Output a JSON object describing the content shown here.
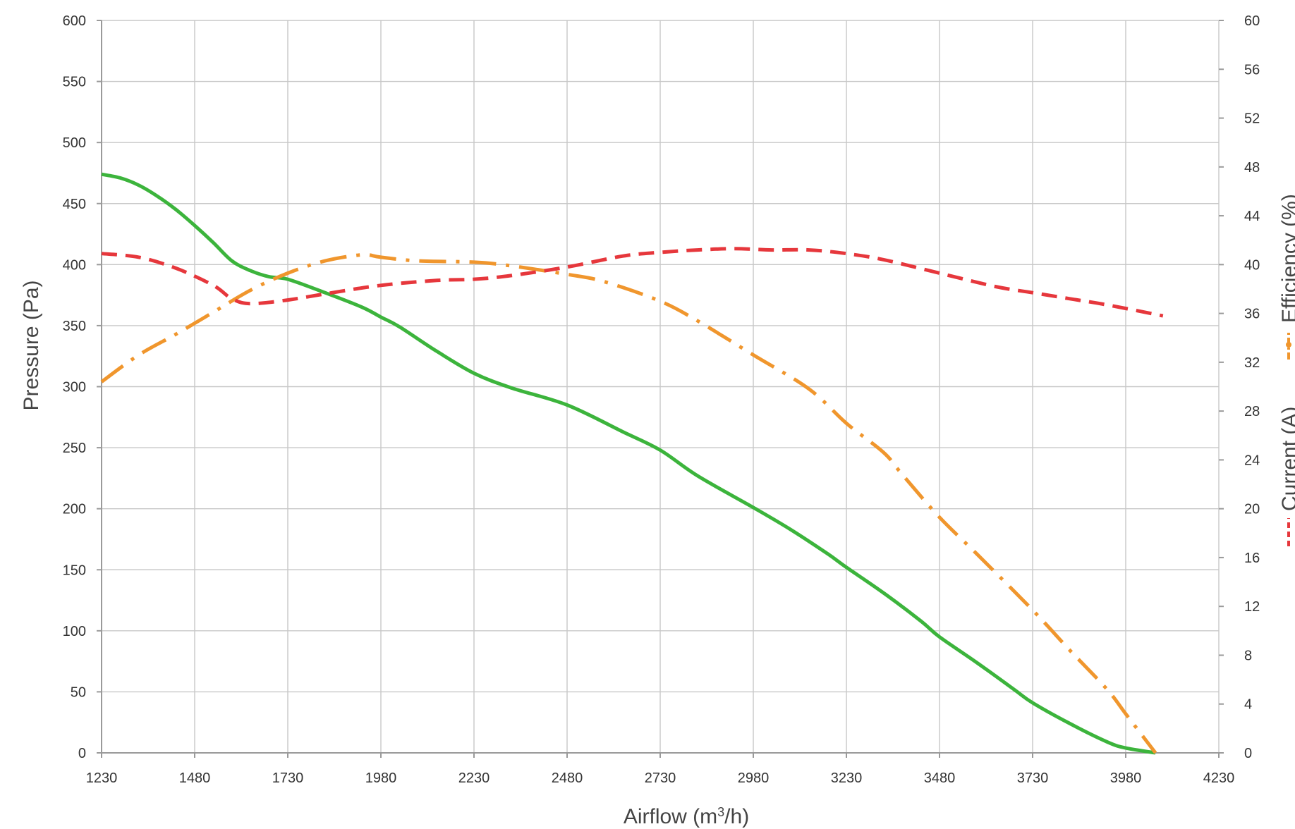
{
  "chart_data": {
    "type": "line",
    "title": "",
    "xlabel_main": "Airflow (m",
    "xlabel_sup": "3",
    "xlabel_tail": "/h)",
    "ylabel": "Pressure (Pa)",
    "y2label_efficiency": "Efficiency (%)",
    "y2label_current": "Current (A)",
    "grid": true,
    "xlim": [
      1230,
      4230
    ],
    "ylim": [
      0,
      600
    ],
    "y2lim": [
      0,
      60
    ],
    "x_ticks": [
      "1230",
      "1480",
      "1730",
      "1980",
      "2230",
      "2480",
      "2730",
      "2980",
      "3230",
      "3480",
      "3730",
      "3980",
      "4230"
    ],
    "y_ticks": [
      "0",
      "50",
      "100",
      "150",
      "200",
      "250",
      "300",
      "350",
      "400",
      "450",
      "500",
      "550",
      "600"
    ],
    "y2_ticks": [
      "0",
      "4",
      "8",
      "12",
      "16",
      "20",
      "24",
      "28",
      "32",
      "36",
      "40",
      "44",
      "48",
      "52",
      "56",
      "60"
    ],
    "series": [
      {
        "key": "pressure",
        "axis": "left",
        "color": "#3cb43c",
        "style": "solid",
        "x": [
          1230,
          1280,
          1330,
          1380,
          1430,
          1480,
          1530,
          1580,
          1630,
          1680,
          1730,
          1830,
          1930,
          1980,
          2030,
          2130,
          2230,
          2330,
          2480,
          2630,
          2730,
          2830,
          2980,
          3080,
          3180,
          3230,
          3330,
          3430,
          3480,
          3580,
          3680,
          3730,
          3830,
          3930,
          3980,
          4060
        ],
        "y": [
          474,
          471,
          465,
          456,
          445,
          432,
          418,
          403,
          395,
          390,
          388,
          377,
          365,
          357,
          349,
          329,
          311,
          299,
          285,
          263,
          248,
          227,
          201,
          183,
          163,
          152,
          131,
          108,
          95,
          74,
          52,
          41,
          24,
          9,
          4,
          0
        ]
      },
      {
        "key": "efficiency",
        "axis": "right",
        "color": "#f0962d",
        "style": "dashdot",
        "x": [
          1230,
          1330,
          1430,
          1530,
          1630,
          1730,
          1830,
          1930,
          1980,
          2080,
          2230,
          2330,
          2480,
          2580,
          2730,
          2830,
          2980,
          3130,
          3230,
          3330,
          3380,
          3480,
          3580,
          3730,
          3830,
          3930,
          3980,
          4060
        ],
        "y": [
          30.4,
          32.6,
          34.3,
          36.1,
          37.9,
          39.3,
          40.3,
          40.8,
          40.6,
          40.3,
          40.2,
          39.9,
          39.2,
          38.6,
          37.0,
          35.4,
          32.6,
          29.8,
          27.0,
          24.6,
          22.8,
          19.3,
          16.3,
          11.7,
          8.4,
          5.2,
          3.2,
          0
        ]
      },
      {
        "key": "current",
        "axis": "right",
        "color": "#e6373c",
        "style": "dashed",
        "x": [
          1230,
          1330,
          1430,
          1530,
          1580,
          1630,
          1730,
          1830,
          1980,
          2130,
          2230,
          2330,
          2480,
          2630,
          2730,
          2830,
          2930,
          3030,
          3130,
          3230,
          3330,
          3480,
          3630,
          3730,
          3830,
          3930,
          4080
        ],
        "y": [
          40.9,
          40.6,
          39.7,
          38.3,
          37.2,
          36.8,
          37.1,
          37.6,
          38.3,
          38.7,
          38.8,
          39.1,
          39.8,
          40.7,
          41.0,
          41.2,
          41.3,
          41.2,
          41.2,
          40.9,
          40.4,
          39.3,
          38.2,
          37.7,
          37.2,
          36.7,
          35.8
        ]
      }
    ]
  }
}
